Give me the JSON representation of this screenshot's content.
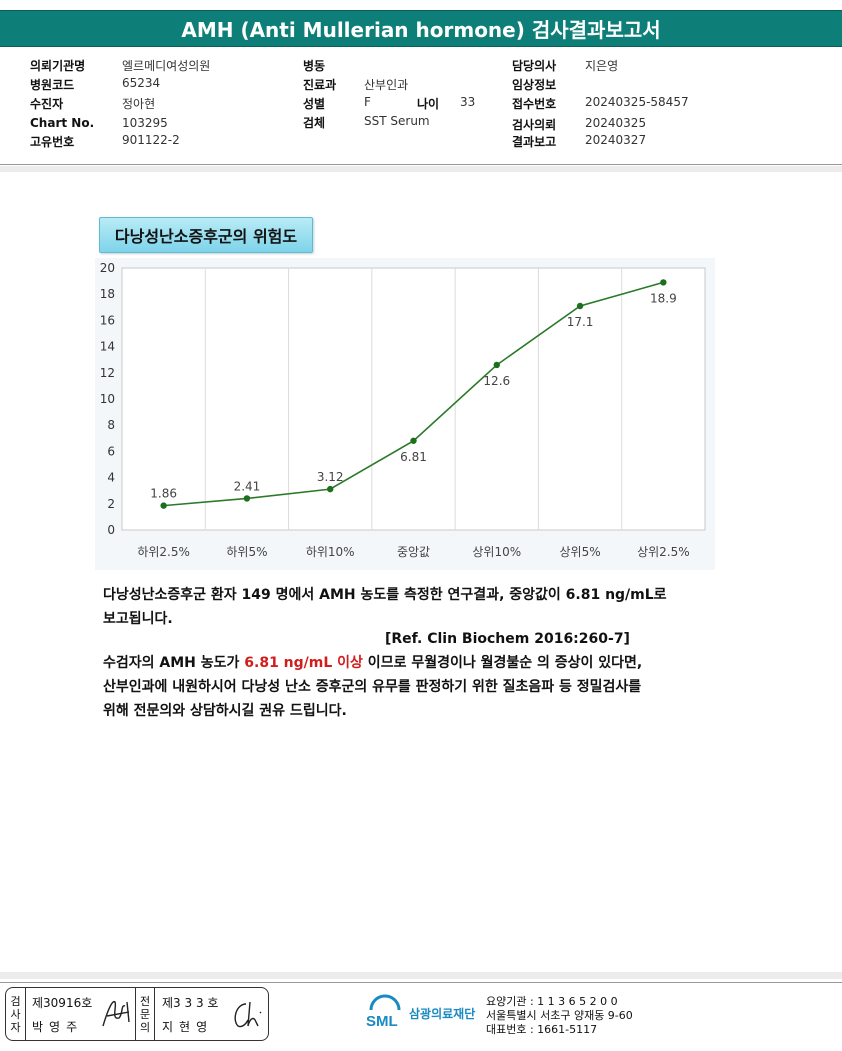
{
  "header": {
    "title": "AMH (Anti Mullerian hormone) 검사결과보고서"
  },
  "info": {
    "col1": [
      {
        "label": "의뢰기관명",
        "value": "엘르메디여성의원"
      },
      {
        "label": "병원코드",
        "value": "65234"
      },
      {
        "label": "수진자",
        "value": "정아현"
      },
      {
        "label": "Chart No.",
        "value": "103295"
      },
      {
        "label": "고유번호",
        "value": "901122-2"
      }
    ],
    "col2": [
      {
        "label": "병동",
        "value": ""
      },
      {
        "label": "진료과",
        "value": "산부인과"
      },
      {
        "label": "성별",
        "value": "F"
      },
      {
        "label": "검체",
        "value": "SST Serum"
      }
    ],
    "age": {
      "label": "나이",
      "value": "33"
    },
    "col3": [
      {
        "label": "담당의사",
        "value": "지은영"
      },
      {
        "label": "임상정보",
        "value": ""
      },
      {
        "label": "접수번호",
        "value": "20240325-58457"
      },
      {
        "label": "검사의뢰",
        "value": "20240325"
      },
      {
        "label": "결과보고",
        "value": "20240327"
      }
    ]
  },
  "risk_title": "다낭성난소증후군의 위험도",
  "chart_data": {
    "type": "line",
    "categories": [
      "하위2.5%",
      "하위5%",
      "하위10%",
      "중앙값",
      "상위10%",
      "상위5%",
      "상위2.5%"
    ],
    "values": [
      1.86,
      2.41,
      3.12,
      6.81,
      12.6,
      17.1,
      18.9
    ],
    "data_labels": [
      "1.86",
      "2.41",
      "3.12",
      "6.81",
      "12.6",
      "17.1",
      "18.9"
    ],
    "ylim": [
      0,
      20
    ],
    "yticks": [
      "0",
      "2",
      "4",
      "6",
      "8",
      "10",
      "12",
      "14",
      "16",
      "18",
      "20"
    ],
    "grid": "vertical",
    "line_color": "#2a7a2a",
    "point_color": "#1e6e1e",
    "title": "",
    "xlabel": "",
    "ylabel": ""
  },
  "text": {
    "p1_line1": "다낭성난소증후군 환자 149 명에서 AMH 농도를 측정한 연구결과, 중앙값이 6.81 ng/mL로",
    "p1_line2": "보고됩니다.",
    "ref": "[Ref. Clin Biochem 2016:260-7]",
    "p2_pre": "수검자의 AMH 농도가 ",
    "p2_red": "6.81 ng/mL 이상",
    "p2_post": " 이므로 무월경이나 월경불순 의 증상이 있다면,",
    "p2_line2": "산부인과에 내원하시어 다낭성 난소 증후군의 유무를 판정하기 위한 질초음파 등 정밀검사를",
    "p2_line3": "위해 전문의와 상담하시길 권유 드립니다."
  },
  "footer": {
    "inspector_label": [
      "검",
      "사",
      "자"
    ],
    "inspector_num": "제30916호",
    "inspector_name": "박영주",
    "specialist_label": [
      "전",
      "문",
      "의"
    ],
    "specialist_num": "제3 3 3 호",
    "specialist_name": "지현영",
    "logo_mark": "SML",
    "logo_text": "삼광의료재단",
    "org_line1": "요양기관 : 1 1 3 6 5 2 0 0",
    "org_line2": "서울특별시 서초구 양재동 9-60",
    "org_line3": "대표번호 : 1661-5117"
  }
}
